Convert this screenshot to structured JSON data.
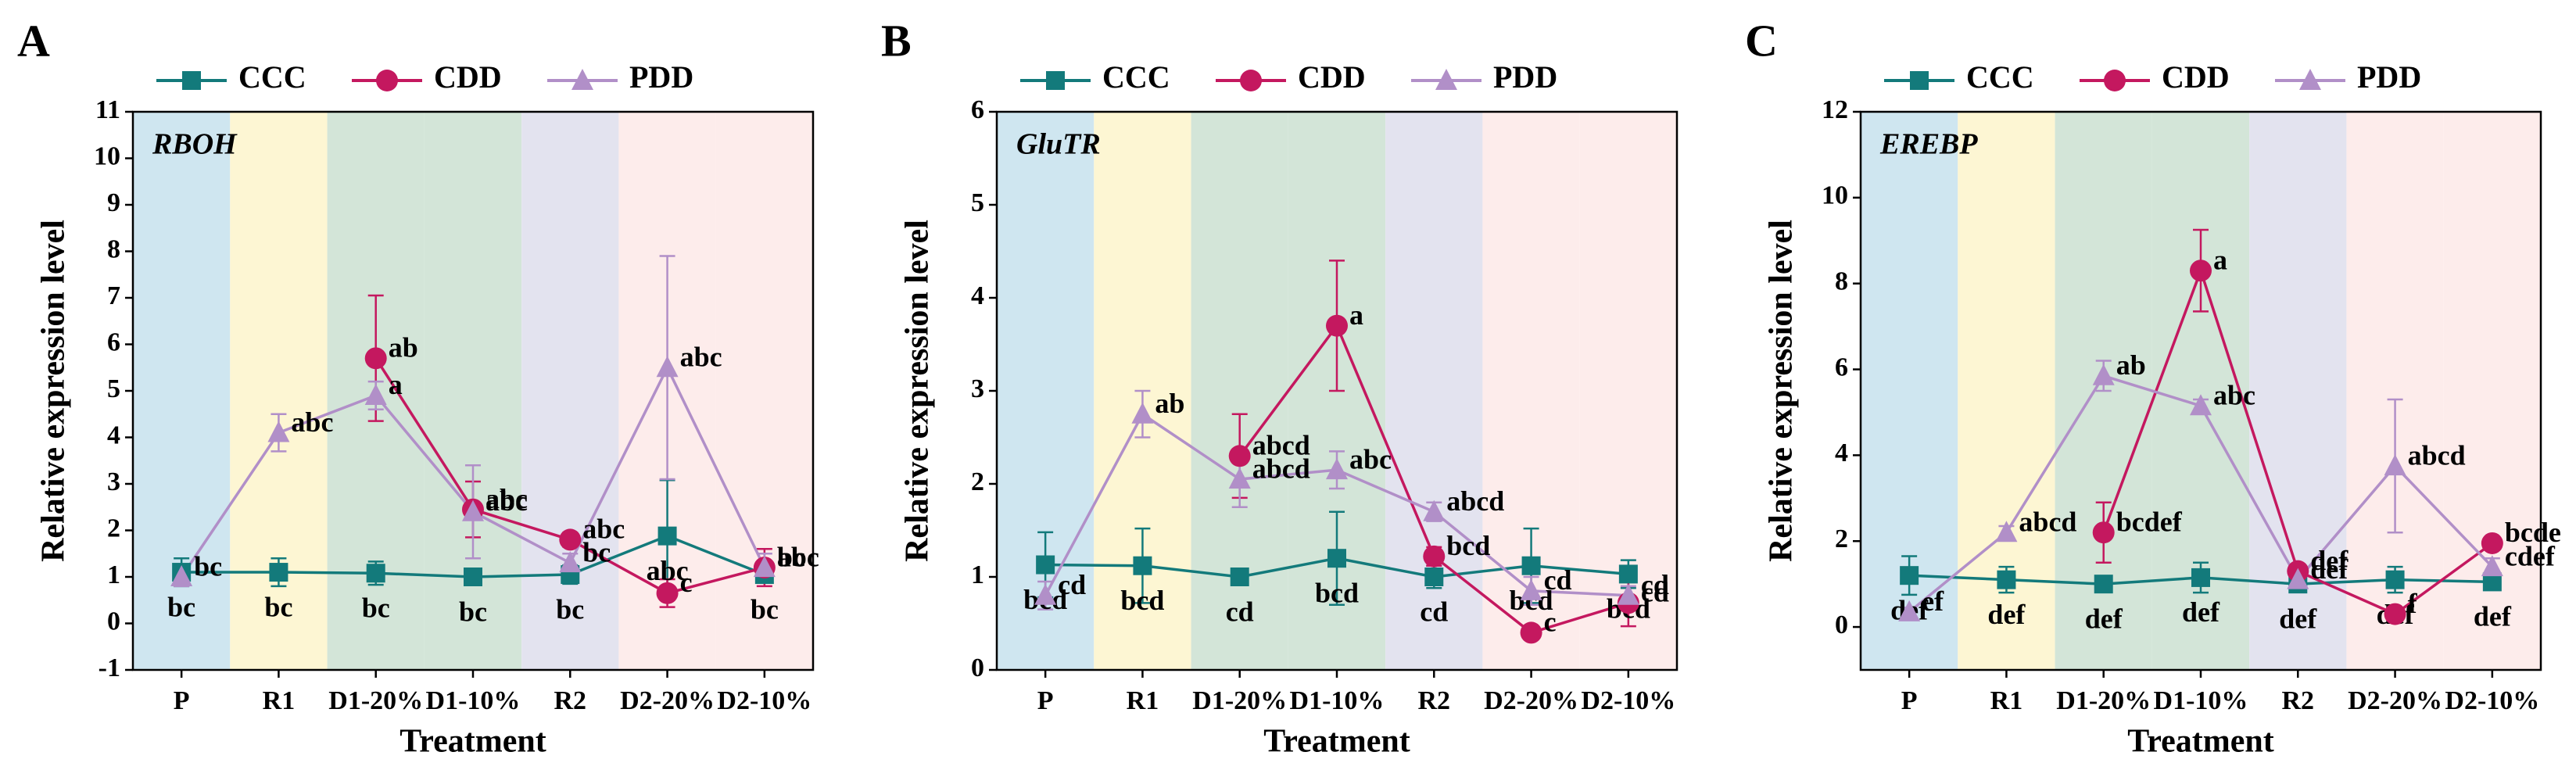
{
  "chart_data": [
    {
      "type": "line",
      "panel": "A",
      "gene": "RBOH",
      "xlabel": "Treatment",
      "ylabel": "Relative expression level",
      "categories": [
        "P",
        "R1",
        "D1-20%",
        "D1-10%",
        "R2",
        "D2-20%",
        "D2-10%"
      ],
      "band_colors": [
        "#cfe6f0",
        "#fdf6d3",
        "#d3e5d8",
        "#d3e5d8",
        "#e3e3ef",
        "#fdeceb",
        "#fdeceb"
      ],
      "ylim": [
        -1,
        11
      ],
      "yticks": [
        -1,
        0,
        1,
        2,
        3,
        4,
        5,
        6,
        7,
        8,
        9,
        10,
        11
      ],
      "series": [
        {
          "name": "CCC",
          "color": "#137a7b",
          "marker": "square",
          "values": [
            1.1,
            1.1,
            1.08,
            1.0,
            1.05,
            1.88,
            1.05
          ],
          "errors": [
            0.3,
            0.3,
            0.25,
            0.05,
            0.2,
            1.2,
            0.15
          ],
          "labels": [
            "bc",
            "bc",
            "bc",
            "bc",
            "bc",
            "abc",
            "bc"
          ]
        },
        {
          "name": "CDD",
          "color": "#c4185f",
          "marker": "circle",
          "values": [
            null,
            null,
            5.7,
            2.45,
            1.8,
            0.65,
            1.2
          ],
          "errors": [
            null,
            null,
            1.35,
            0.6,
            0.15,
            0.3,
            0.4
          ],
          "labels": [
            null,
            null,
            "ab",
            "abc",
            "abc",
            "c",
            "abc"
          ]
        },
        {
          "name": "PDD",
          "color": "#b18fc8",
          "marker": "triangle",
          "values": [
            1.0,
            4.1,
            4.9,
            2.4,
            1.3,
            5.5,
            1.2
          ],
          "errors": [
            0.2,
            0.4,
            0.3,
            1.0,
            0.2,
            2.4,
            0.3
          ],
          "labels": [
            "bc",
            "abc",
            "a",
            "abc",
            "bc",
            "abc",
            "bc"
          ]
        }
      ]
    },
    {
      "type": "line",
      "panel": "B",
      "gene": "GluTR",
      "xlabel": "Treatment",
      "ylabel": "Relative expression level",
      "categories": [
        "P",
        "R1",
        "D1-20%",
        "D1-10%",
        "R2",
        "D2-20%",
        "D2-10%"
      ],
      "band_colors": [
        "#cfe6f0",
        "#fdf6d3",
        "#d3e5d8",
        "#d3e5d8",
        "#e3e3ef",
        "#fdeceb",
        "#fdeceb"
      ],
      "ylim": [
        0,
        6
      ],
      "yticks": [
        0,
        1,
        2,
        3,
        4,
        5,
        6
      ],
      "series": [
        {
          "name": "CCC",
          "color": "#137a7b",
          "marker": "square",
          "values": [
            1.13,
            1.12,
            1.0,
            1.2,
            1.0,
            1.12,
            1.03
          ],
          "errors": [
            0.35,
            0.4,
            0.05,
            0.5,
            0.12,
            0.4,
            0.15
          ],
          "labels": [
            "bcd",
            "bcd",
            "cd",
            "bcd",
            "cd",
            "bcd",
            "bcd"
          ]
        },
        {
          "name": "CDD",
          "color": "#c4185f",
          "marker": "circle",
          "values": [
            null,
            null,
            2.3,
            3.7,
            1.22,
            0.4,
            0.72
          ],
          "errors": [
            null,
            null,
            0.45,
            0.7,
            0.1,
            0.05,
            0.25
          ],
          "labels": [
            null,
            null,
            "abcd",
            "a",
            "bcd",
            "c",
            "cd"
          ]
        },
        {
          "name": "PDD",
          "color": "#b18fc8",
          "marker": "triangle",
          "values": [
            0.8,
            2.75,
            2.05,
            2.15,
            1.7,
            0.85,
            0.8
          ],
          "errors": [
            0.15,
            0.25,
            0.3,
            0.2,
            0.1,
            0.15,
            0.1
          ],
          "labels": [
            "cd",
            "ab",
            "abcd",
            "abc",
            "abcd",
            "cd",
            "cd"
          ]
        }
      ]
    },
    {
      "type": "line",
      "panel": "C",
      "gene": "EREBP",
      "xlabel": "Treatment",
      "ylabel": "Relative expression level",
      "categories": [
        "P",
        "R1",
        "D1-20%",
        "D1-10%",
        "R2",
        "D2-20%",
        "D2-10%"
      ],
      "band_colors": [
        "#cfe6f0",
        "#fdf6d3",
        "#d3e5d8",
        "#d3e5d8",
        "#e3e3ef",
        "#fdeceb",
        "#fdeceb"
      ],
      "ylim": [
        -1,
        12
      ],
      "yticks": [
        0,
        2,
        4,
        6,
        8,
        10,
        12
      ],
      "series": [
        {
          "name": "CCC",
          "color": "#137a7b",
          "marker": "square",
          "values": [
            1.2,
            1.1,
            1.0,
            1.15,
            1.0,
            1.1,
            1.05
          ],
          "errors": [
            0.45,
            0.3,
            0.1,
            0.35,
            0.1,
            0.3,
            0.15
          ],
          "labels": [
            "def",
            "def",
            "def",
            "def",
            "def",
            "def",
            "def"
          ]
        },
        {
          "name": "CDD",
          "color": "#c4185f",
          "marker": "circle",
          "values": [
            null,
            null,
            2.2,
            8.3,
            1.3,
            0.3,
            1.95
          ],
          "errors": [
            null,
            null,
            0.7,
            0.95,
            0.15,
            0.05,
            0.15
          ],
          "labels": [
            null,
            null,
            "bcdef",
            "a",
            "def",
            "f",
            "bcde"
          ]
        },
        {
          "name": "PDD",
          "color": "#b18fc8",
          "marker": "triangle",
          "values": [
            0.35,
            2.2,
            5.85,
            5.15,
            1.1,
            3.75,
            1.4
          ],
          "errors": [
            0.1,
            0.15,
            0.35,
            0.15,
            0.1,
            1.55,
            0.2
          ],
          "labels": [
            "ef",
            "abcd",
            "ab",
            "abc",
            "def",
            "abcd",
            "cdef"
          ]
        }
      ]
    }
  ]
}
